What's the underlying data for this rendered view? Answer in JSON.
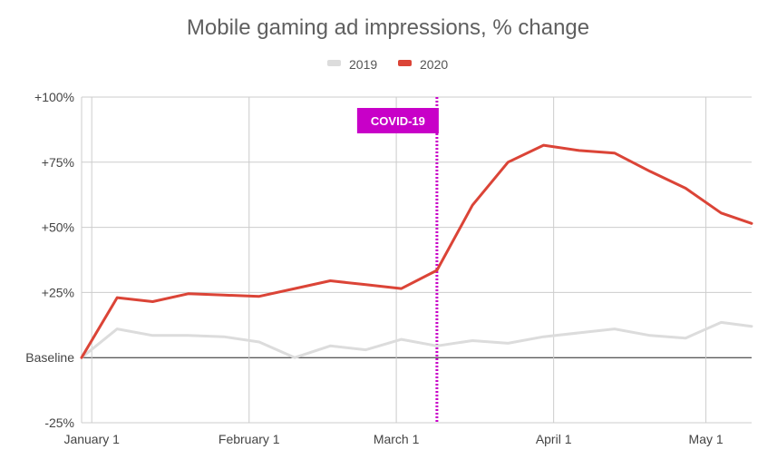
{
  "chart_data": {
    "type": "line",
    "title": "Mobile gaming ad impressions, % change",
    "xlabel": "",
    "ylabel": "",
    "x_ticks": [
      {
        "date": "2020-01-01",
        "label": "January 1"
      },
      {
        "date": "2020-02-01",
        "label": "February 1"
      },
      {
        "date": "2020-03-01",
        "label": "March 1"
      },
      {
        "date": "2020-04-01",
        "label": "April 1"
      },
      {
        "date": "2020-05-01",
        "label": "May 1"
      }
    ],
    "x_range": [
      "2019-12-30",
      "2020-05-10"
    ],
    "y_ticks": [
      {
        "value": 100,
        "label": "+100%"
      },
      {
        "value": 75,
        "label": "+75%"
      },
      {
        "value": 50,
        "label": "+50%"
      },
      {
        "value": 25,
        "label": "+25%"
      },
      {
        "value": 0,
        "label": "Baseline"
      },
      {
        "value": -25,
        "label": "-25%"
      }
    ],
    "ylim": [
      -25,
      100
    ],
    "grid": true,
    "legend_position": "top-center",
    "x": [
      "2019-12-30",
      "2020-01-06",
      "2020-01-13",
      "2020-01-20",
      "2020-01-27",
      "2020-02-03",
      "2020-02-10",
      "2020-02-17",
      "2020-02-24",
      "2020-03-02",
      "2020-03-09",
      "2020-03-16",
      "2020-03-23",
      "2020-03-30",
      "2020-04-06",
      "2020-04-13",
      "2020-04-20",
      "2020-04-27",
      "2020-05-04",
      "2020-05-10"
    ],
    "series": [
      {
        "name": "2019",
        "color": "#dcdcdc",
        "values": [
          0,
          11,
          8.5,
          8.5,
          8,
          6,
          0,
          4.5,
          3,
          7,
          4.5,
          6.5,
          5.5,
          8,
          9.5,
          11,
          8.5,
          7.5,
          13.5,
          12
        ]
      },
      {
        "name": "2020",
        "color": "#db4437",
        "values": [
          0,
          23,
          21.5,
          24.5,
          24,
          23.5,
          26.5,
          29.5,
          28,
          26.5,
          33.5,
          58.5,
          75,
          81.5,
          79.5,
          78.5,
          71.5,
          65,
          55.5,
          51.5
        ]
      }
    ],
    "annotations": [
      {
        "type": "vertical-line",
        "x": "2020-03-09",
        "label": "COVID-19",
        "color": "#c800c8"
      }
    ],
    "baseline_color": "#222222",
    "grid_color": "#cccccc"
  }
}
